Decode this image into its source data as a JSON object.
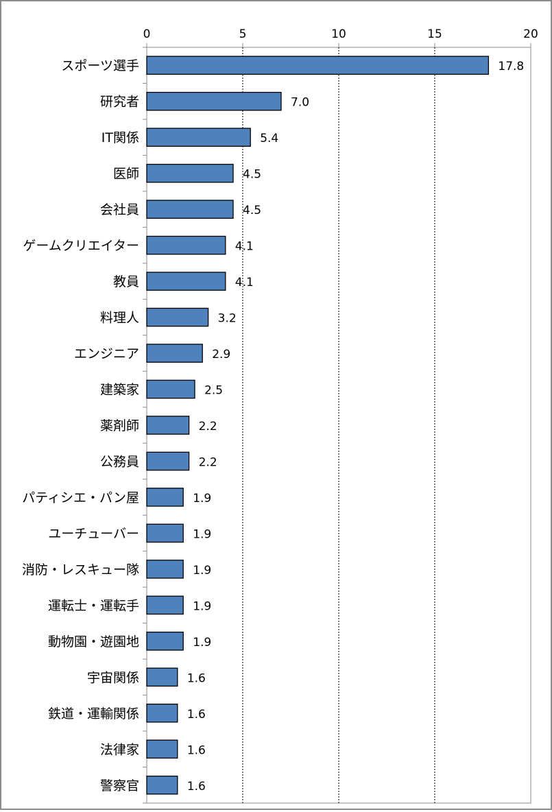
{
  "chart_data": {
    "type": "bar",
    "orientation": "horizontal",
    "title": "",
    "xlabel": "",
    "ylabel": "",
    "xlim": [
      0,
      20
    ],
    "x_ticks": [
      "0",
      "5",
      "10",
      "15",
      "20"
    ],
    "x_tick_values": [
      0,
      5,
      10,
      15,
      20
    ],
    "grid": true,
    "legend": "none",
    "bar_color": "#4f81bd",
    "bar_edge_color": "#000000",
    "categories": [
      "スポーツ選手",
      "研究者",
      "IT関係",
      "医師",
      "会社員",
      "ゲームクリエイター",
      "教員",
      "料理人",
      "エンジニア",
      "建築家",
      "薬剤師",
      "公務員",
      "パティシエ・パン屋",
      "ユーチューバー",
      "消防・レスキュー隊",
      "運転士・運転手",
      "動物園・遊園地",
      "宇宙関係",
      "鉄道・運輸関係",
      "法律家",
      "警察官"
    ],
    "values": [
      17.8,
      7.0,
      5.4,
      4.5,
      4.5,
      4.1,
      4.1,
      3.2,
      2.9,
      2.5,
      2.2,
      2.2,
      1.9,
      1.9,
      1.9,
      1.9,
      1.9,
      1.6,
      1.6,
      1.6,
      1.6
    ],
    "value_labels": [
      "17.8",
      "7.0",
      "5.4",
      "4.5",
      "4.5",
      "4.1",
      "4.1",
      "3.2",
      "2.9",
      "2.5",
      "2.2",
      "2.2",
      "1.9",
      "1.9",
      "1.9",
      "1.9",
      "1.9",
      "1.6",
      "1.6",
      "1.6",
      "1.6"
    ]
  }
}
